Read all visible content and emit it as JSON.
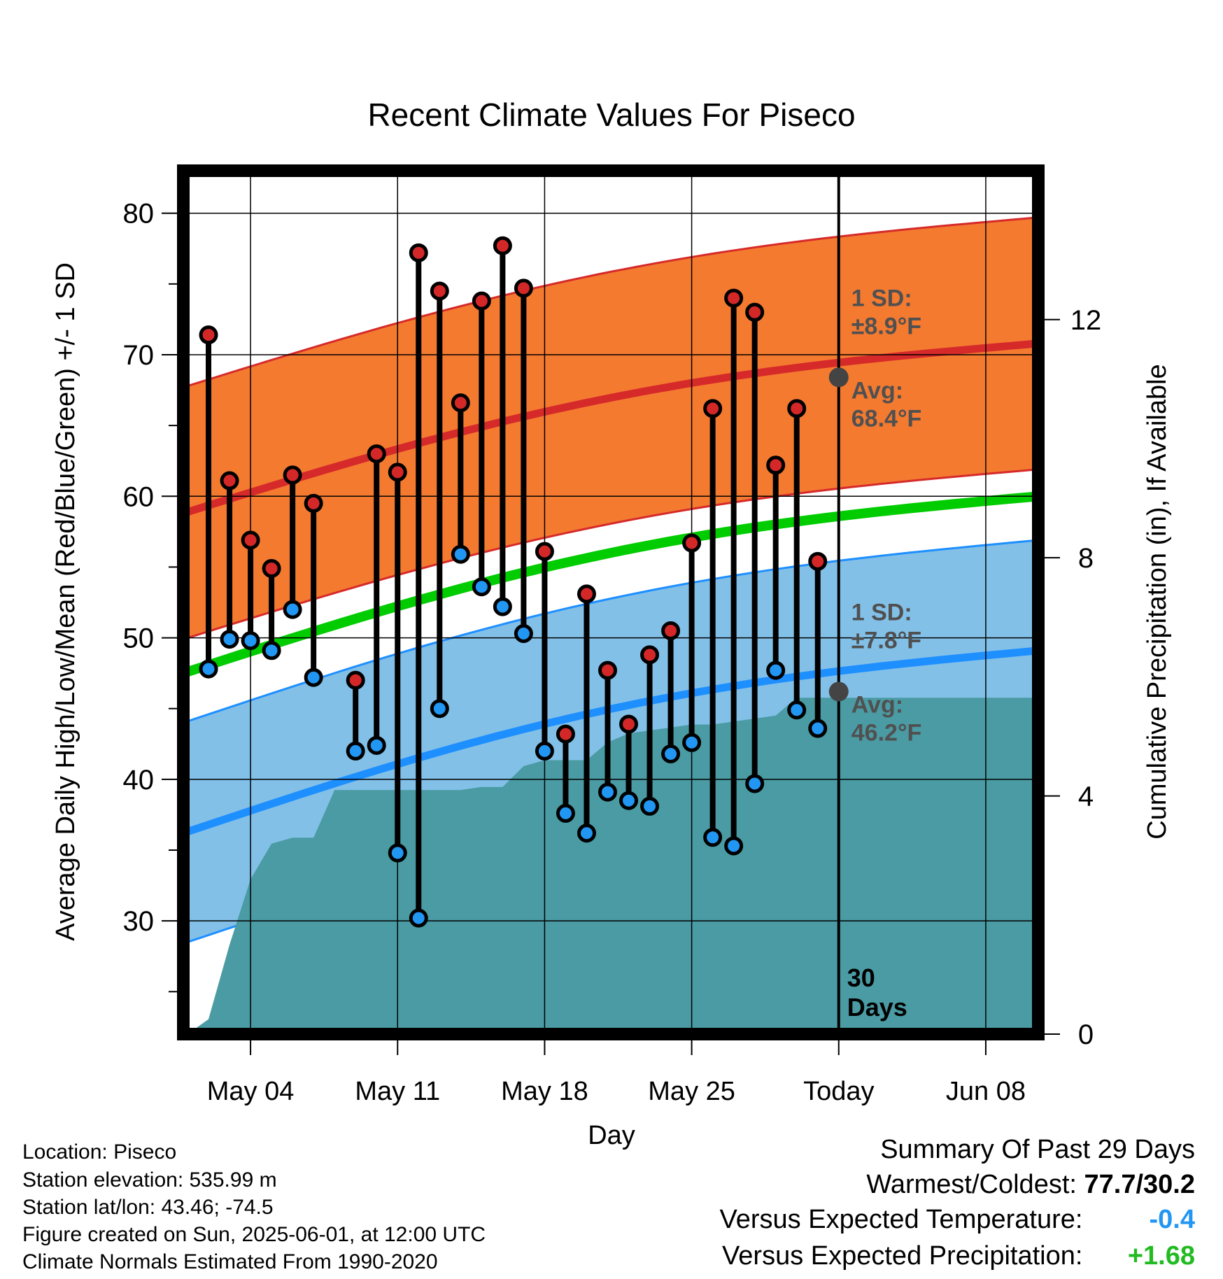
{
  "chart_data": {
    "type": "line",
    "title": "Recent Climate Values For Piseco",
    "xlabel": "Day",
    "ylabel": "Average Daily High/Low/Mean (Red/Blue/Green) +/- 1 SD",
    "y2label": "Cumulative Precipitation (in), If Available",
    "ylim": [
      22,
      83
    ],
    "y_ticks": [
      30,
      40,
      50,
      60,
      70,
      80
    ],
    "y2lim": [
      0,
      14.5
    ],
    "y2_ticks": [
      0,
      4,
      8,
      12
    ],
    "x_ticks": [
      {
        "day": 4,
        "label": "May 04"
      },
      {
        "day": 11,
        "label": "May 11"
      },
      {
        "day": 18,
        "label": "May 18"
      },
      {
        "day": 25,
        "label": "May 25"
      },
      {
        "day": 32,
        "label": "Today"
      },
      {
        "day": 39,
        "label": "Jun 08"
      }
    ],
    "xlim": [
      0.8,
      41.5
    ],
    "days": [
      2,
      3,
      4,
      5,
      6,
      7,
      9,
      10,
      11,
      12,
      13,
      14,
      15,
      16,
      17,
      18,
      19,
      20,
      21,
      22,
      23,
      24,
      25,
      26,
      27,
      28,
      29,
      30,
      31
    ],
    "highs": [
      71.4,
      61.1,
      56.9,
      54.9,
      61.5,
      59.5,
      47.0,
      63.0,
      61.7,
      77.2,
      74.5,
      66.6,
      73.8,
      77.7,
      74.7,
      56.1,
      43.2,
      53.1,
      47.7,
      43.9,
      48.8,
      50.5,
      56.7,
      66.2,
      74.0,
      73.0,
      62.2,
      66.2,
      55.4
    ],
    "lows": [
      47.8,
      49.9,
      49.8,
      49.1,
      52.0,
      47.2,
      42.0,
      42.4,
      34.8,
      30.2,
      45.0,
      55.9,
      53.6,
      52.2,
      50.3,
      42.0,
      37.6,
      36.2,
      39.1,
      38.5,
      38.1,
      41.8,
      42.6,
      35.9,
      35.3,
      39.7,
      47.7,
      44.9,
      43.6
    ],
    "high_normal_start": 58.8,
    "high_normal_end": 70.8,
    "low_normal_start": 36.2,
    "low_normal_end": 49.1,
    "mean_normal_start": 47.5,
    "mean_normal_end": 60.0,
    "high_sd": 8.9,
    "low_sd": 7.8,
    "precip_cumulative": [
      [
        1,
        0.0
      ],
      [
        2,
        0.25
      ],
      [
        3,
        1.5
      ],
      [
        4,
        2.6
      ],
      [
        5,
        3.2
      ],
      [
        6,
        3.3
      ],
      [
        7,
        3.3
      ],
      [
        8,
        4.1
      ],
      [
        9,
        4.1
      ],
      [
        10,
        4.1
      ],
      [
        11,
        4.1
      ],
      [
        12,
        4.1
      ],
      [
        13,
        4.1
      ],
      [
        14,
        4.1
      ],
      [
        15,
        4.15
      ],
      [
        16,
        4.15
      ],
      [
        17,
        4.5
      ],
      [
        18,
        4.6
      ],
      [
        19,
        4.6
      ],
      [
        20,
        4.6
      ],
      [
        21,
        4.9
      ],
      [
        22,
        5.05
      ],
      [
        23,
        5.1
      ],
      [
        24,
        5.15
      ],
      [
        25,
        5.2
      ],
      [
        26,
        5.2
      ],
      [
        27,
        5.25
      ],
      [
        28,
        5.3
      ],
      [
        29,
        5.35
      ],
      [
        30,
        5.65
      ],
      [
        31,
        5.65
      ],
      [
        41.5,
        5.65
      ]
    ],
    "today_day": 32,
    "today_label_line1": "30",
    "today_label_line2": "Days",
    "high_annot": {
      "sd_title": "1 SD:",
      "sd_value": "±8.9°F",
      "avg_title": "Avg:",
      "avg_value": "68.4°F",
      "avg": 68.4
    },
    "low_annot": {
      "sd_title": "1 SD:",
      "sd_value": "±7.8°F",
      "avg_title": "Avg:",
      "avg_value": "46.2°F",
      "avg": 46.2
    },
    "grid": true,
    "colors": {
      "high_band": "#f47a30",
      "high_line": "#d62a2a",
      "low_band": "#82c0e8",
      "low_line": "#1e8fff",
      "mean_line": "#00cc00",
      "precip": "#4a9ba4",
      "high_dot": "#d42828",
      "low_dot": "#2196f3",
      "annot": "#505050"
    }
  },
  "info": {
    "location": "Location: Piseco",
    "elevation": "Station elevation: 535.99 m",
    "latlon": "Station lat/lon: 43.46; -74.5",
    "created": "Figure created on Sun, 2025-06-01, at 12:00 UTC",
    "normals": "Climate Normals Estimated From 1990-2020"
  },
  "summary": {
    "title": "Summary Of Past 29 Days",
    "warm_cold_label": "Warmest/Coldest:",
    "warm_cold_value": "77.7/30.2",
    "temp_label": "Versus Expected Temperature:",
    "temp_value": "-0.4",
    "temp_color": "#2196f3",
    "precip_label": "Versus Expected Precipitation:",
    "precip_value": "+1.68",
    "precip_color": "#22bb22"
  }
}
